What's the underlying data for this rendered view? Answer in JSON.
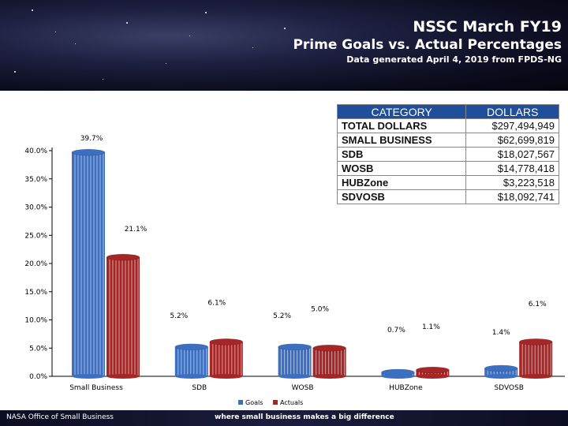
{
  "header": {
    "title": "NSSC March FY19",
    "subtitle": "Prime Goals vs. Actual Percentages",
    "note": "Data generated April 4, 2019 from FPDS-NG"
  },
  "footer": {
    "left": "NASA Office of Small Business",
    "center": "where small business makes a big difference"
  },
  "table": {
    "headers": [
      "CATEGORY",
      "DOLLARS"
    ],
    "rows": [
      {
        "category": "TOTAL DOLLARS",
        "dollars": "$297,494,949"
      },
      {
        "category": "SMALL BUSINESS",
        "dollars": "$62,699,819"
      },
      {
        "category": "SDB",
        "dollars": "$18,027,567"
      },
      {
        "category": "WOSB",
        "dollars": "$14,778,418"
      },
      {
        "category": "HUBZone",
        "dollars": "$3,223,518"
      },
      {
        "category": "SDVOSB",
        "dollars": "$18,092,741"
      }
    ]
  },
  "colors": {
    "goals": "#3d6fc0",
    "actuals": "#a52626",
    "table_header": "#1f4e9a"
  },
  "chart_data": {
    "type": "bar",
    "categories": [
      "Small Business",
      "SDB",
      "WOSB",
      "HUBZone",
      "SDVOSB"
    ],
    "series": [
      {
        "name": "Goals",
        "values": [
          39.7,
          5.2,
          5.2,
          0.7,
          1.4
        ],
        "labels": [
          "39.7%",
          "5.2%",
          "5.2%",
          "0.7%",
          "1.4%"
        ]
      },
      {
        "name": "Actuals",
        "values": [
          21.1,
          6.1,
          5.0,
          1.1,
          6.1
        ],
        "labels": [
          "21.1%",
          "6.1%",
          "5.0%",
          "1.1%",
          "6.1%"
        ]
      }
    ],
    "yticks": [
      "0.0%",
      "5.0%",
      "10.0%",
      "15.0%",
      "20.0%",
      "25.0%",
      "30.0%",
      "35.0%",
      "40.0%"
    ],
    "ylim": [
      0,
      40
    ],
    "legend": "bottom"
  }
}
